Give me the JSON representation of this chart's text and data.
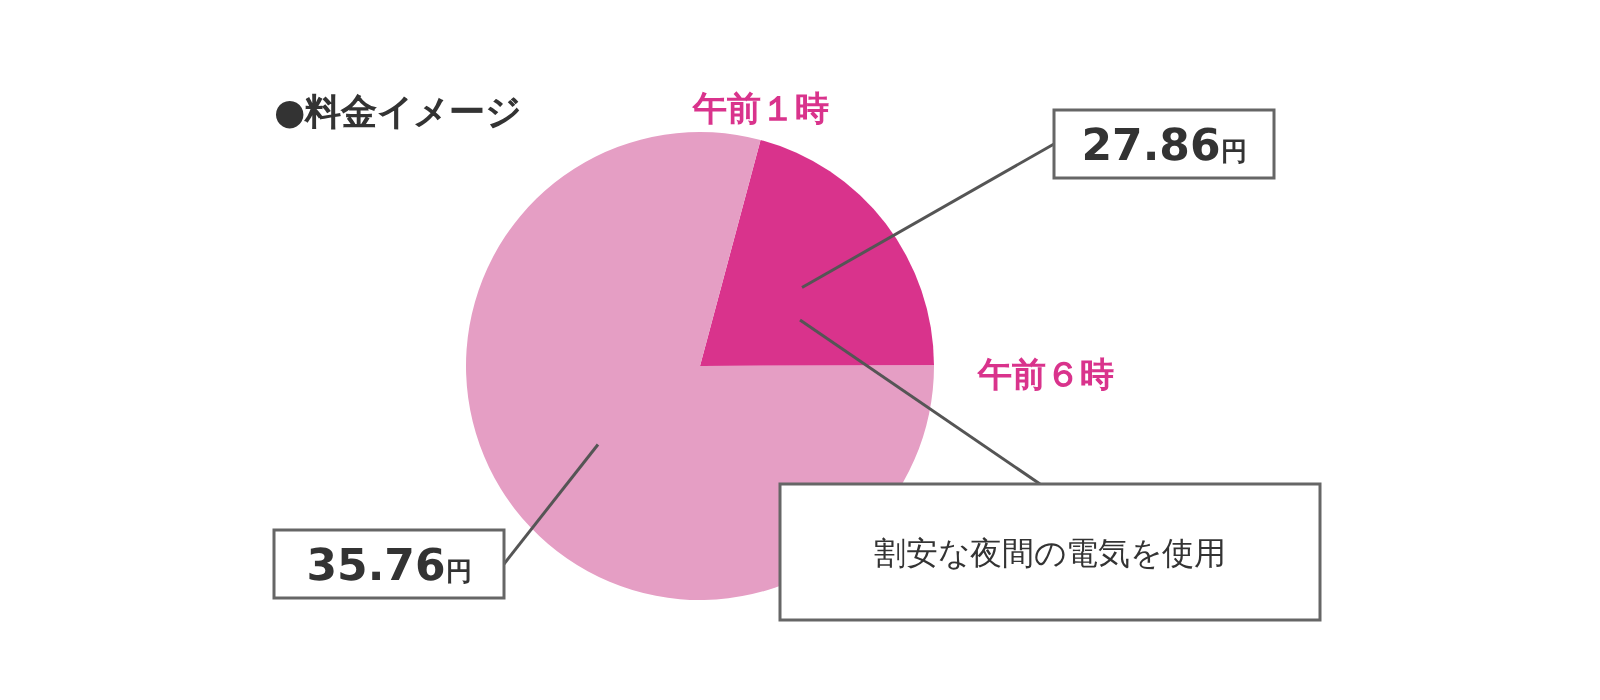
{
  "chart_data": {
    "type": "pie",
    "title": "●料金イメージ",
    "categories": [
      null,
      null
    ],
    "values": [
      20.8,
      79.2
    ],
    "colors": [
      "#d9338c",
      "#e59ec4"
    ],
    "annotations": [
      "午前１時",
      "午前６時",
      "割安な夜間の電気を使用",
      "27.86円",
      "35.76円"
    ]
  }
}
